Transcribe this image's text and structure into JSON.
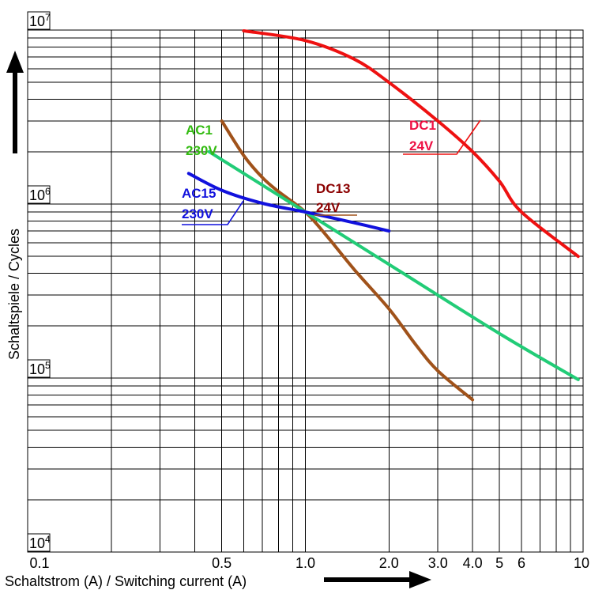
{
  "chart_data": {
    "type": "line",
    "x_scale": "log",
    "y_scale": "log",
    "xlim": [
      0.1,
      10
    ],
    "ylim": [
      10000,
      10000000
    ],
    "grid": true,
    "xlabel": "Schaltstrom (A) / Switching current (A)",
    "ylabel": "Schaltspiele / Cycles",
    "x_tick_labels": [
      {
        "value": 0.1,
        "label": "0.1"
      },
      {
        "value": 0.5,
        "label": "0.5"
      },
      {
        "value": 1.0,
        "label": "1.0"
      },
      {
        "value": 2.0,
        "label": "2.0"
      },
      {
        "value": 3.0,
        "label": "3.0"
      },
      {
        "value": 4.0,
        "label": "4.0"
      },
      {
        "value": 5,
        "label": "5"
      },
      {
        "value": 6,
        "label": "6"
      },
      {
        "value": 10,
        "label": "10"
      }
    ],
    "y_decade_labels": [
      {
        "value": 10000000,
        "base": "10",
        "exp": "7"
      },
      {
        "value": 1000000,
        "base": "10",
        "exp": "6"
      },
      {
        "value": 100000,
        "base": "10",
        "exp": "5"
      },
      {
        "value": 10000,
        "base": "10",
        "exp": "4"
      }
    ],
    "series": [
      {
        "name": "DC1 24V",
        "label_line1": "DC1",
        "label_line2": "24V",
        "color": "#ee1111",
        "label_color": "#ee1144",
        "points": [
          [
            0.6,
            9900000
          ],
          [
            1.0,
            8700000
          ],
          [
            1.5,
            6800000
          ],
          [
            2.0,
            5000000
          ],
          [
            3.0,
            3000000
          ],
          [
            4.0,
            2000000
          ],
          [
            5.0,
            1350000
          ],
          [
            6.0,
            900000
          ],
          [
            9.6,
            500000
          ]
        ]
      },
      {
        "name": "DC13 24V",
        "label_line1": "DC13",
        "label_line2": "24V",
        "color": "#a0521a",
        "label_color": "#8b0000",
        "points": [
          [
            0.5,
            3000000
          ],
          [
            0.6,
            1900000
          ],
          [
            0.7,
            1420000
          ],
          [
            0.8,
            1180000
          ],
          [
            1.0,
            900000
          ],
          [
            1.2,
            650000
          ],
          [
            1.5,
            420000
          ],
          [
            2.0,
            250000
          ],
          [
            2.5,
            155000
          ],
          [
            3.0,
            110000
          ],
          [
            4.0,
            75000
          ]
        ]
      },
      {
        "name": "AC1 230V",
        "label_line1": "AC1",
        "label_line2": "230V",
        "color": "#22cc77",
        "label_color": "#33bb11",
        "points": [
          [
            0.45,
            2000000
          ],
          [
            1.0,
            900000
          ],
          [
            2.0,
            450000
          ],
          [
            5.0,
            180000
          ],
          [
            9.6,
            98000
          ]
        ]
      },
      {
        "name": "AC15 230V",
        "label_line1": "AC15",
        "label_line2": "230V",
        "color": "#1111dd",
        "label_color": "#1111dd",
        "points": [
          [
            0.38,
            1500000
          ],
          [
            0.5,
            1200000
          ],
          [
            0.7,
            1010000
          ],
          [
            1.0,
            900000
          ],
          [
            1.5,
            780000
          ],
          [
            2.0,
            700000
          ]
        ]
      }
    ]
  }
}
